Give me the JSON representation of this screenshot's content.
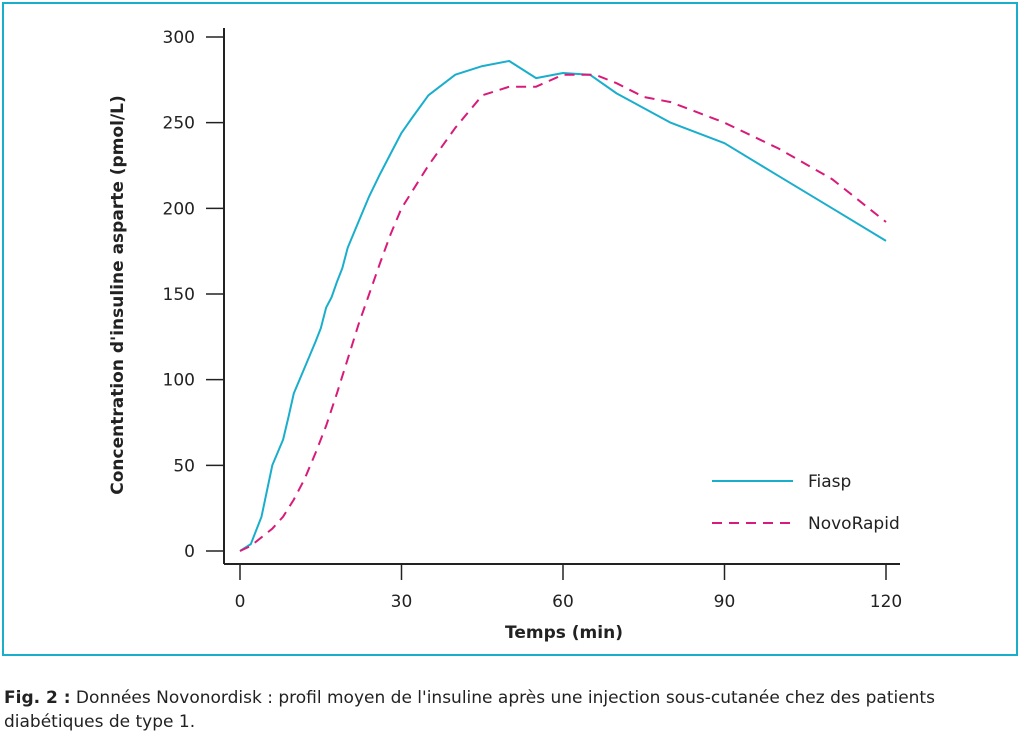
{
  "chart_data": {
    "type": "line",
    "xlabel": "Temps (min)",
    "ylabel": "Concentration d'insuline asparte (pmol/L)",
    "xlim": [
      0,
      120
    ],
    "ylim": [
      0,
      300
    ],
    "x_ticks": [
      0,
      30,
      60,
      90,
      120
    ],
    "y_ticks": [
      0,
      50,
      100,
      150,
      200,
      250,
      300
    ],
    "grid": false,
    "legend_position": "bottom-right",
    "series": [
      {
        "name": "Fiasp",
        "color": "#1aaecd",
        "style": "solid",
        "points": [
          [
            0,
            0
          ],
          [
            2,
            4
          ],
          [
            4,
            20
          ],
          [
            5,
            35
          ],
          [
            6,
            50
          ],
          [
            8,
            65
          ],
          [
            9,
            78
          ],
          [
            10,
            92
          ],
          [
            12,
            107
          ],
          [
            14,
            122
          ],
          [
            15,
            130
          ],
          [
            16,
            142
          ],
          [
            17,
            148
          ],
          [
            18,
            157
          ],
          [
            19,
            165
          ],
          [
            20,
            177
          ],
          [
            22,
            192
          ],
          [
            24,
            207
          ],
          [
            26,
            220
          ],
          [
            28,
            232
          ],
          [
            30,
            244
          ],
          [
            32,
            253
          ],
          [
            35,
            266
          ],
          [
            40,
            278
          ],
          [
            45,
            283
          ],
          [
            50,
            286
          ],
          [
            55,
            276
          ],
          [
            60,
            279
          ],
          [
            65,
            278
          ],
          [
            70,
            267
          ],
          [
            80,
            250
          ],
          [
            90,
            238
          ],
          [
            100,
            219
          ],
          [
            110,
            200
          ],
          [
            120,
            181
          ]
        ]
      },
      {
        "name": "NovoRapid",
        "color": "#d81b7a",
        "style": "dashed",
        "points": [
          [
            0,
            0
          ],
          [
            2,
            3
          ],
          [
            4,
            8
          ],
          [
            6,
            13
          ],
          [
            8,
            20
          ],
          [
            10,
            30
          ],
          [
            12,
            42
          ],
          [
            14,
            57
          ],
          [
            16,
            73
          ],
          [
            18,
            92
          ],
          [
            20,
            112
          ],
          [
            22,
            132
          ],
          [
            24,
            150
          ],
          [
            26,
            168
          ],
          [
            28,
            185
          ],
          [
            30,
            200
          ],
          [
            35,
            225
          ],
          [
            40,
            247
          ],
          [
            45,
            266
          ],
          [
            50,
            271
          ],
          [
            55,
            271
          ],
          [
            60,
            278
          ],
          [
            66,
            278
          ],
          [
            70,
            273
          ],
          [
            75,
            265
          ],
          [
            80,
            262
          ],
          [
            90,
            250
          ],
          [
            100,
            235
          ],
          [
            110,
            217
          ],
          [
            120,
            192
          ]
        ]
      }
    ]
  },
  "caption": {
    "label": "Fig. 2 :",
    "text": " Données Novonordisk : profil moyen de l'insuline après une injection sous-cutanée chez des patients diabétiques de type 1."
  }
}
